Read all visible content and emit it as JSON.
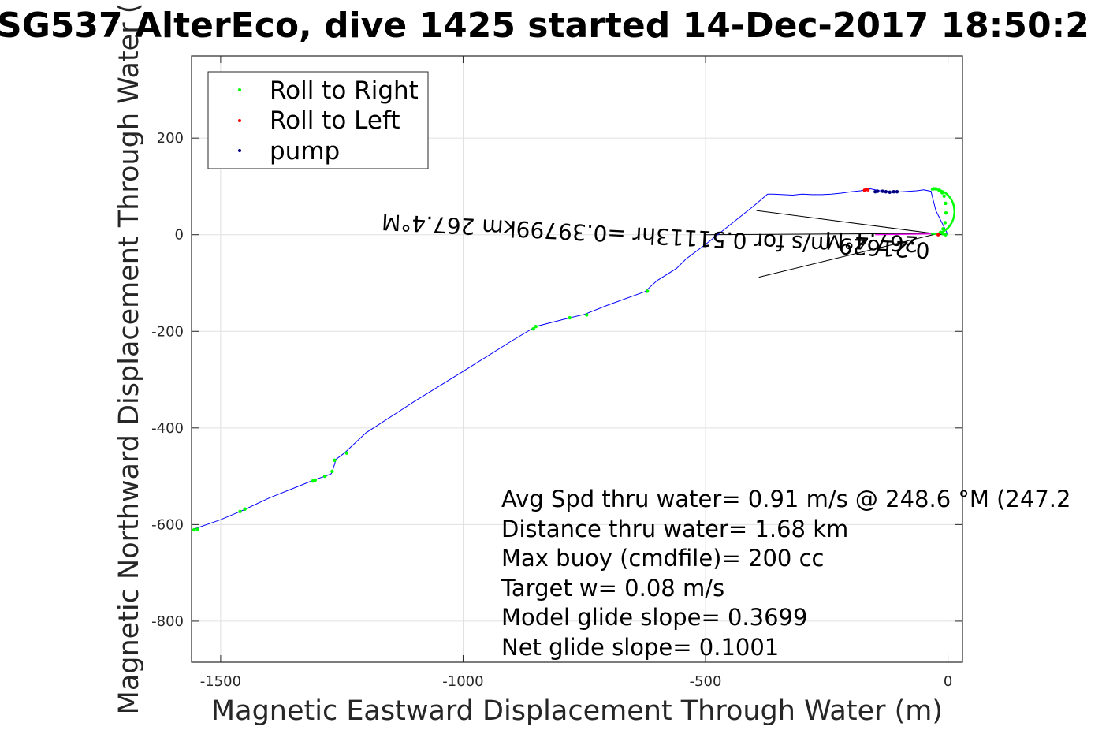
{
  "chart_data": {
    "type": "line",
    "title": "SG537 AlterEco, dive 1425 started 14-Dec-2017 18:50:2",
    "xlabel": "Magnetic Eastward Displacement Through Water (m)",
    "ylabel": "Magnetic Northward Displacement Through Water (",
    "xlim": [
      -1560,
      30
    ],
    "ylim": [
      -885,
      370
    ],
    "xticks": [
      -1500,
      -1000,
      -500,
      0
    ],
    "xtick_labels": [
      "-1500",
      "-1000",
      "-500",
      "0"
    ],
    "yticks": [
      -800,
      -600,
      -400,
      -200,
      0,
      200
    ],
    "ytick_labels": [
      "-800",
      "-600",
      "-400",
      "-200",
      "0",
      "200"
    ],
    "grid": true,
    "legend": {
      "placement": "top-left",
      "entries": [
        {
          "label": "Roll to Right",
          "color": "#00ff00"
        },
        {
          "label": "Roll to Left",
          "color": "#ff0000"
        },
        {
          "label": "pump",
          "color": "#000080"
        }
      ]
    },
    "colors": {
      "track": "#0000ff",
      "roll_right": "#00ff00",
      "roll_left": "#ff0000",
      "pump": "#000080",
      "current": "#000000",
      "grid": "#e0e0e0",
      "axes": "#262626"
    },
    "series": [
      {
        "name": "",
        "role": "track",
        "x": [
          0,
          -10,
          -25,
          -35,
          -50,
          -65,
          -80,
          -95,
          -110,
          -125,
          -140,
          -160,
          -170,
          -180,
          -200,
          -220,
          -240,
          -260,
          -280,
          -300,
          -320,
          -340,
          -360,
          -372,
          -400,
          -450,
          -500,
          -540,
          -560,
          -600,
          -625,
          -700,
          -750,
          -780,
          -850,
          -900,
          -1000,
          -1100,
          -1200,
          -1245,
          -1262,
          -1268,
          -1272,
          -1285,
          -1300,
          -1308,
          -1400,
          -1453,
          -1460,
          -1500,
          -1557,
          -1560
        ],
        "y": [
          0,
          20,
          50,
          90,
          93,
          91,
          90,
          89,
          88,
          90,
          91,
          95,
          93,
          91,
          89,
          86,
          84,
          83,
          83,
          84,
          82,
          83,
          84,
          84,
          60,
          20,
          -20,
          -50,
          -70,
          -95,
          -118,
          -145,
          -165,
          -172,
          -190,
          -220,
          -283,
          -345,
          -410,
          -452,
          -465,
          -485,
          -495,
          -500,
          -505,
          -508,
          -545,
          -570,
          -573,
          -590,
          -610,
          -612
        ]
      },
      {
        "name": "Roll to Right",
        "role": "points",
        "x": [
          -30,
          -25,
          -18,
          -12,
          -8,
          -5,
          -4,
          -6,
          -10,
          -15,
          -10,
          -5,
          -780,
          -745,
          -620,
          -855,
          -850,
          -1240,
          -1265,
          -1270,
          -1305,
          -1310,
          -1285,
          -1450,
          -1460,
          -1548,
          -1555
        ],
        "y": [
          95,
          95,
          92,
          87,
          80,
          65,
          45,
          25,
          12,
          5,
          2,
          0,
          -172,
          -166,
          -117,
          -195,
          -190,
          -452,
          -467,
          -490,
          -508,
          -510,
          -500,
          -568,
          -573,
          -610,
          -611
        ]
      },
      {
        "name": "Roll to Left",
        "role": "points",
        "x": [
          -165,
          -168,
          -172,
          -20
        ],
        "y": [
          93,
          94,
          92,
          0
        ]
      },
      {
        "name": "pump",
        "role": "points",
        "x": [
          -105,
          -112,
          -120,
          -128,
          -135,
          -145,
          -150
        ],
        "y": [
          89,
          89,
          88,
          89,
          90,
          90,
          89
        ]
      },
      {
        "name": "",
        "role": "current-wedge",
        "x": [
          -395,
          -10,
          -390,
          -10,
          -500,
          -10
        ],
        "y": [
          50,
          0,
          -88,
          5,
          0,
          3
        ]
      }
    ],
    "annotations": {
      "stats": [
        "Avg Spd thru water=  0.91 m/s @ 248.6 °M (247.2",
        "Distance thru water=  1.68 km",
        "Max buoy (cmdfile)= 200 cc",
        "Target w= 0.08 m/s",
        "Model glide slope= 0.3699",
        "Net glide slope= 0.1001"
      ],
      "rotated": [
        "267.4°M",
        "0.21629 m/s for 0.51113hr =0.39799km 267.4°M"
      ]
    }
  }
}
